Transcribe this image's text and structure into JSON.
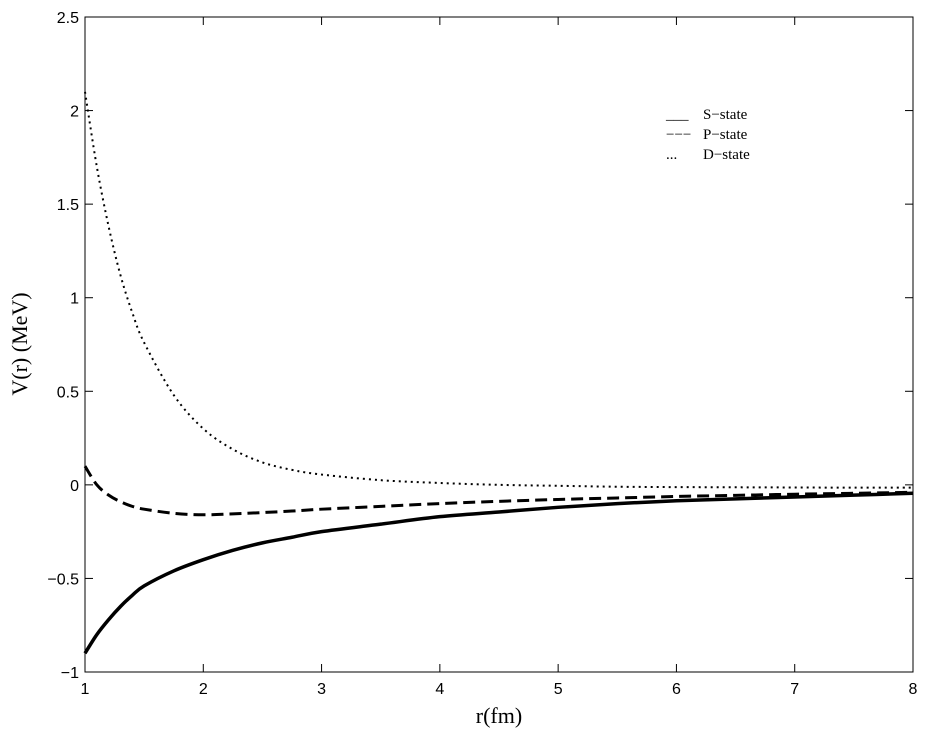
{
  "chart_data": {
    "type": "line",
    "xlabel": "r(fm)",
    "ylabel": "V(r) (MeV)",
    "xlim": [
      1,
      8
    ],
    "ylim": [
      -1,
      2.5
    ],
    "xticks": [
      1,
      2,
      3,
      4,
      5,
      6,
      7,
      8
    ],
    "yticks": [
      -1,
      -0.5,
      0,
      0.5,
      1,
      1.5,
      2,
      2.5
    ],
    "xtick_labels": [
      "1",
      "2",
      "3",
      "4",
      "5",
      "6",
      "7",
      "8"
    ],
    "ytick_labels": [
      "−1",
      "−0.5",
      "0",
      "0.5",
      "1",
      "1.5",
      "2",
      "2.5"
    ],
    "grid": false,
    "legend_position": "top-right",
    "x": [
      1.0,
      1.1,
      1.2,
      1.3,
      1.4,
      1.5,
      1.75,
      2.0,
      2.25,
      2.5,
      2.75,
      3.0,
      3.5,
      4.0,
      4.5,
      5.0,
      5.5,
      6.0,
      6.5,
      7.0,
      7.5,
      8.0
    ],
    "series": [
      {
        "name": "S−state",
        "legend_marker": "___",
        "style": "solid",
        "values": [
          -0.9,
          -0.8,
          -0.72,
          -0.65,
          -0.59,
          -0.54,
          -0.46,
          -0.4,
          -0.35,
          -0.31,
          -0.28,
          -0.25,
          -0.21,
          -0.17,
          -0.145,
          -0.12,
          -0.1,
          -0.085,
          -0.075,
          -0.065,
          -0.055,
          -0.045
        ]
      },
      {
        "name": "P−state",
        "legend_marker": "−−−",
        "style": "dashed",
        "values": [
          0.1,
          0.0,
          -0.055,
          -0.09,
          -0.115,
          -0.13,
          -0.152,
          -0.16,
          -0.155,
          -0.148,
          -0.14,
          -0.13,
          -0.115,
          -0.1,
          -0.088,
          -0.078,
          -0.07,
          -0.062,
          -0.056,
          -0.05,
          -0.045,
          -0.04
        ]
      },
      {
        "name": "D−state",
        "legend_marker": "...",
        "style": "dotted",
        "values": [
          2.1,
          1.7,
          1.38,
          1.12,
          0.92,
          0.76,
          0.48,
          0.3,
          0.19,
          0.12,
          0.08,
          0.055,
          0.025,
          0.01,
          0.0,
          -0.005,
          -0.01,
          -0.012,
          -0.013,
          -0.014,
          -0.015,
          -0.015
        ]
      }
    ]
  }
}
